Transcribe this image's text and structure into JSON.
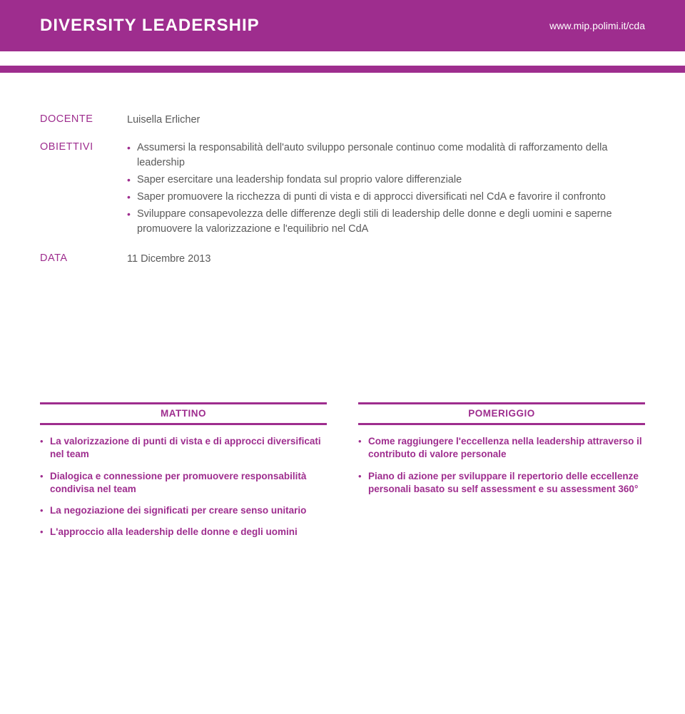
{
  "colors": {
    "brand": "#9e2d8e",
    "text_body": "#5a5a5a",
    "bg": "#ffffff"
  },
  "typography": {
    "title_fontsize": 24,
    "body_fontsize": 14.5,
    "session_fontsize": 13.5
  },
  "header": {
    "title": "DIVERSITY LEADERSHIP",
    "url": "www.mip.polimi.it/cda"
  },
  "docente": {
    "label": "DOCENTE",
    "name": "Luisella Erlicher"
  },
  "obiettivi": {
    "label": "OBIETTIVI",
    "items": [
      "Assumersi la responsabilità dell'auto sviluppo personale continuo come modalità di rafforzamento della leadership",
      "Saper esercitare una leadership fondata sul proprio valore differenziale",
      "Saper promuovere la ricchezza di punti di vista e di approcci diversificati nel CdA e favorire il confronto",
      "Sviluppare consapevolezza delle differenze degli stili di leadership delle donne e degli uomini e saperne promuovere la valorizzazione e l'equilibrio nel CdA"
    ]
  },
  "data_row": {
    "label": "DATA",
    "value": "11 Dicembre 2013"
  },
  "sessions": {
    "mattino": {
      "title": "MATTINO",
      "items": [
        "La valorizzazione di punti di vista e di approcci diversificati nel team",
        "Dialogica e connessione per promuovere responsabilità condivisa nel team",
        "La negoziazione dei significati per creare senso unitario",
        "L'approccio alla leadership delle donne e degli uomini"
      ]
    },
    "pomeriggio": {
      "title": "POMERIGGIO",
      "items": [
        "Come raggiungere l'eccellenza nella leadership attraverso il contributo di valore personale",
        "Piano di azione per sviluppare il repertorio delle eccellenze personali basato su self assessment e su assessment 360°"
      ]
    }
  }
}
